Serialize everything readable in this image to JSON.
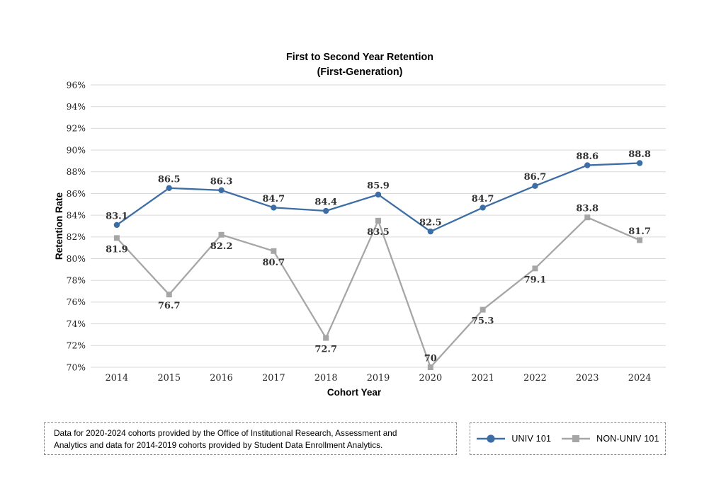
{
  "title": {
    "line1": "First to Second Year Retention",
    "line2": "(First-Generation)"
  },
  "chart_data": {
    "type": "line",
    "categories": [
      "2014",
      "2015",
      "2016",
      "2017",
      "2018",
      "2019",
      "2020",
      "2021",
      "2022",
      "2023",
      "2024"
    ],
    "series": [
      {
        "name": "UNIV 101",
        "color": "#3c6ea5",
        "marker": "circle",
        "values": [
          83.1,
          86.5,
          86.3,
          84.7,
          84.4,
          85.9,
          82.5,
          84.7,
          86.7,
          88.6,
          88.8
        ],
        "labels": [
          "83.1",
          "86.5",
          "86.3",
          "84.7",
          "84.4",
          "85.9",
          "82.5",
          "84.7",
          "86.7",
          "88.6",
          "88.8"
        ],
        "label_positions": [
          "above",
          "above",
          "above",
          "above",
          "above",
          "above",
          "above",
          "above",
          "above",
          "above",
          "above"
        ]
      },
      {
        "name": "NON-UNIV 101",
        "color": "#a6a6a6",
        "marker": "square",
        "values": [
          81.9,
          76.7,
          82.2,
          80.7,
          72.7,
          83.5,
          70,
          75.3,
          79.1,
          83.8,
          81.7
        ],
        "labels": [
          "81.9",
          "76.7",
          "82.2",
          "80.7",
          "72.7",
          "83.5",
          "70",
          "75.3",
          "79.1",
          "83.8",
          "81.7"
        ],
        "label_positions": [
          "below",
          "below",
          "below",
          "below",
          "below",
          "below",
          "above",
          "below",
          "below",
          "above",
          "above"
        ]
      }
    ],
    "xlabel": "Cohort Year",
    "ylabel": "Retention Rate",
    "ylim": [
      70,
      96
    ],
    "ytick_step": 2,
    "ytick_suffix": "%",
    "grid": true,
    "legend_position": "bottom-right"
  },
  "footnote": {
    "lines": [
      "Data for 2020-2024 cohorts provided by the Office of Institutional Research, Assessment and",
      "Analytics and data for 2014-2019 cohorts provided by Student Data Enrollment Analytics."
    ]
  },
  "legend": {
    "items": [
      {
        "label": "UNIV 101",
        "color": "#3c6ea5",
        "marker": "circle"
      },
      {
        "label": "NON-UNIV 101",
        "color": "#a6a6a6",
        "marker": "square"
      }
    ]
  },
  "colors": {
    "univ_blue": "#3c6ea5",
    "non_univ_gray": "#a6a6a6",
    "gridline": "#dadada",
    "tick_text": "#262626",
    "data_label_text": "#333333"
  }
}
